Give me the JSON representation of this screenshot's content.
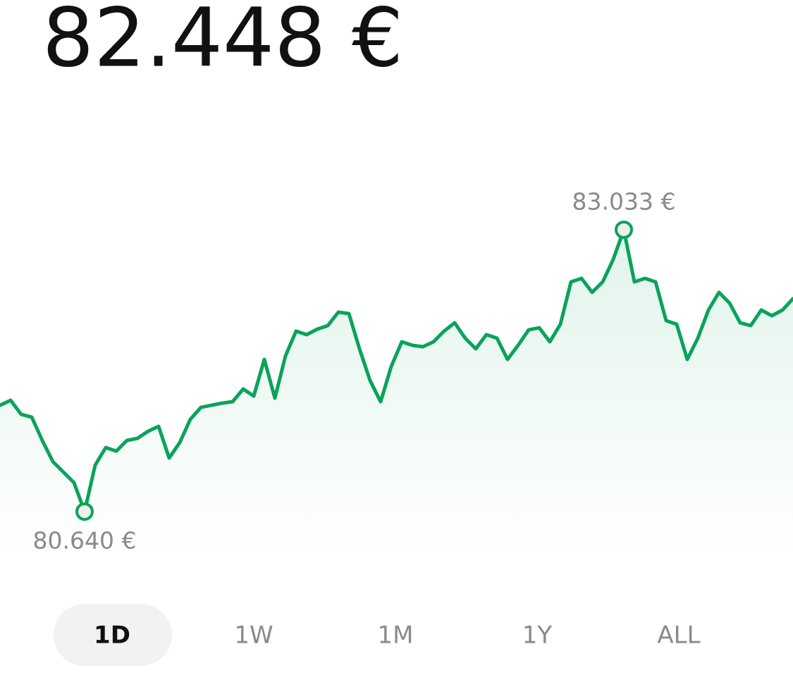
{
  "header": {
    "price": "82.448 €"
  },
  "chart_data": {
    "type": "line",
    "color": "#0aa35a",
    "values": [
      81543,
      81585,
      81466,
      81442,
      81244,
      81065,
      80975,
      80885,
      80640,
      81035,
      81184,
      81154,
      81244,
      81262,
      81322,
      81364,
      81095,
      81226,
      81424,
      81525,
      81543,
      81561,
      81573,
      81681,
      81621,
      81932,
      81603,
      81962,
      82172,
      82142,
      82189,
      82219,
      82333,
      82321,
      82022,
      81753,
      81573,
      81872,
      82082,
      82052,
      82040,
      82082,
      82172,
      82243,
      82112,
      82022,
      82142,
      82112,
      81932,
      82052,
      82183,
      82201,
      82082,
      82231,
      82590,
      82620,
      82501,
      82590,
      82782,
      83033,
      82590,
      82620,
      82590,
      82261,
      82231,
      81932,
      82112,
      82351,
      82501,
      82411,
      82243,
      82219,
      82351,
      82303,
      82351,
      82448
    ],
    "annotations": [
      {
        "value": 83033,
        "label": "83.033 €"
      },
      {
        "value": 80640,
        "label": "80.640 €"
      }
    ]
  },
  "ranges": [
    "1D",
    "1W",
    "1M",
    "1Y",
    "ALL"
  ],
  "selected_range": 0
}
